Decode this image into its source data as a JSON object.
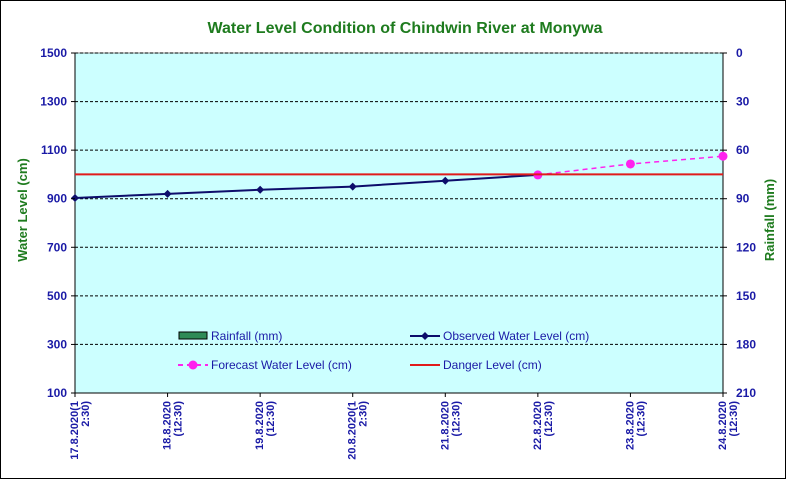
{
  "chart_data": {
    "type": "line",
    "title": "Water Level Condition  of Chindwin  River at  Monywa",
    "ylabel": "Water Level (cm)",
    "y2label": "Rainfall (mm)",
    "ylim": [
      100,
      1500
    ],
    "yticks": [
      100,
      300,
      500,
      700,
      900,
      1100,
      1300,
      1500
    ],
    "y2lim": [
      0,
      210
    ],
    "y2_inverted": true,
    "y2ticks": [
      210,
      180,
      150,
      120,
      90,
      60,
      30,
      0
    ],
    "grid": true,
    "legend_position": "lower-center",
    "categories": [
      [
        "17.8.2020(1",
        "2:30)"
      ],
      [
        "18.8.2020",
        "(12:30)"
      ],
      [
        "19.8.2020",
        "(12:30)"
      ],
      [
        "20.8.2020(1",
        "2:30)"
      ],
      [
        "21.8.2020",
        "(12:30)"
      ],
      [
        "22.8.2020",
        "(12:30)"
      ],
      [
        "23.8.2020",
        "(12:30)"
      ],
      [
        "24.8.2020",
        "(12:30)"
      ]
    ],
    "series": [
      {
        "name": "Rainfall (mm)",
        "type": "bar",
        "axis": "right",
        "color": "#2e8b57",
        "values": [
          null,
          null,
          null,
          null,
          null,
          null,
          null,
          null
        ]
      },
      {
        "name": "Observed Water Level (cm)",
        "type": "line",
        "marker": "diamond",
        "color": "#0d0d6b",
        "values": [
          903,
          920,
          937,
          950,
          974,
          998,
          null,
          null
        ]
      },
      {
        "name": "Forecast Water Level (cm)",
        "type": "line",
        "style": "dashed",
        "marker": "circle",
        "color": "#ff22ee",
        "values": [
          null,
          null,
          null,
          null,
          null,
          998,
          1043,
          1075
        ]
      },
      {
        "name": "Danger Level (cm)",
        "type": "line",
        "color": "#e01b1b",
        "values": [
          1000,
          1000,
          1000,
          1000,
          1000,
          1000,
          1000,
          1000
        ]
      }
    ],
    "colors": {
      "plot_background": "#ccffff",
      "text": "#1a1aa6",
      "title": "#1e7b1e"
    }
  }
}
